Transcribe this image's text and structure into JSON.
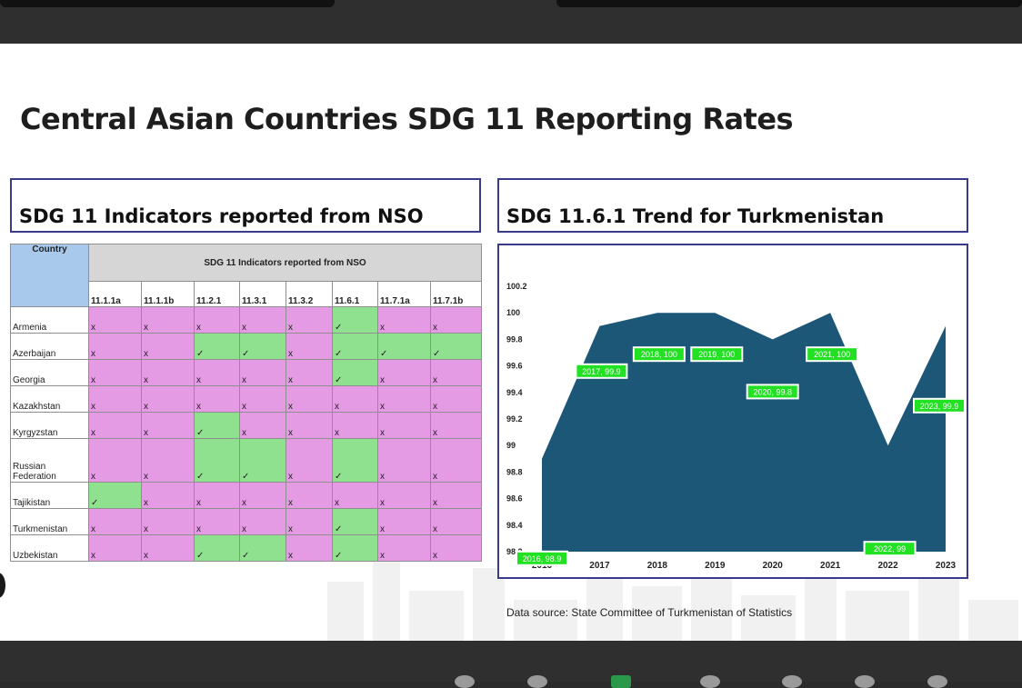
{
  "slide": {
    "title": "Central Asian Countries SDG 11 Reporting Rates",
    "left_heading": "SDG 11 Indicators reported from NSO",
    "right_heading": "SDG 11.6.1 Trend for Turkmenistan",
    "source": "Data source: State Committee of Turkmenistan of Statistics"
  },
  "table": {
    "country_header": "Country",
    "group_header": "SDG 11 Indicators reported from NSO",
    "indicators": [
      "11.1.1a",
      "11.1.1b",
      "11.2.1",
      "11.3.1",
      "11.3.2",
      "11.6.1",
      "11.7.1a",
      "11.7.1b"
    ],
    "rows": [
      {
        "country": "Armenia",
        "cells": [
          "x",
          "x",
          "x",
          "x",
          "x",
          "✓",
          "x",
          "x"
        ]
      },
      {
        "country": "Azerbaijan",
        "cells": [
          "x",
          "x",
          "✓",
          "✓",
          "x",
          "✓",
          "✓",
          "✓"
        ]
      },
      {
        "country": "Georgia",
        "cells": [
          "x",
          "x",
          "x",
          "x",
          "x",
          "✓",
          "x",
          "x"
        ]
      },
      {
        "country": "Kazakhstan",
        "cells": [
          "x",
          "x",
          "x",
          "x",
          "x",
          "x",
          "x",
          "x"
        ]
      },
      {
        "country": "Kyrgyzstan",
        "cells": [
          "x",
          "x",
          "✓",
          "x",
          "x",
          "x",
          "x",
          "x"
        ]
      },
      {
        "country": "Russian Federation",
        "cells": [
          "x",
          "x",
          "✓",
          "✓",
          "x",
          "✓",
          "x",
          "x"
        ]
      },
      {
        "country": "Tajikistan",
        "cells": [
          "✓",
          "x",
          "x",
          "x",
          "x",
          "x",
          "x",
          "x"
        ]
      },
      {
        "country": "Turkmenistan",
        "cells": [
          "x",
          "x",
          "x",
          "x",
          "x",
          "✓",
          "x",
          "x"
        ]
      },
      {
        "country": "Uzbekistan",
        "cells": [
          "x",
          "x",
          "✓",
          "✓",
          "x",
          "✓",
          "x",
          "x"
        ]
      }
    ],
    "colors": {
      "reported": "#8fe08f",
      "not_reported": "#e59ae4",
      "country_header": "#a9c9ec"
    }
  },
  "chart_data": {
    "type": "area",
    "title": "SDG 11.6.1 Trend for Turkmenistan",
    "x": [
      "2016",
      "2017",
      "2018",
      "2019",
      "2020",
      "2021",
      "2022",
      "2023"
    ],
    "series": [
      {
        "values": [
          98.9,
          99.9,
          100,
          100,
          99.8,
          100,
          99,
          99.9
        ],
        "color": "#1d5778"
      }
    ],
    "data_labels": [
      "2016, 98.9",
      "2017, 99.9",
      "2018, 100",
      "2019, 100",
      "2020, 99.8",
      "2021, 100",
      "2022, 99",
      "2023, 99.9"
    ],
    "ylim": [
      98.2,
      100.2
    ],
    "yticks": [
      "98.2",
      "98.4",
      "98.6",
      "98.8",
      "99",
      "99.2",
      "99.4",
      "99.6",
      "99.8",
      "100",
      "100.2"
    ],
    "xlabel": "",
    "ylabel": "",
    "label_color": "#22e022",
    "grid": false,
    "legend": false
  }
}
